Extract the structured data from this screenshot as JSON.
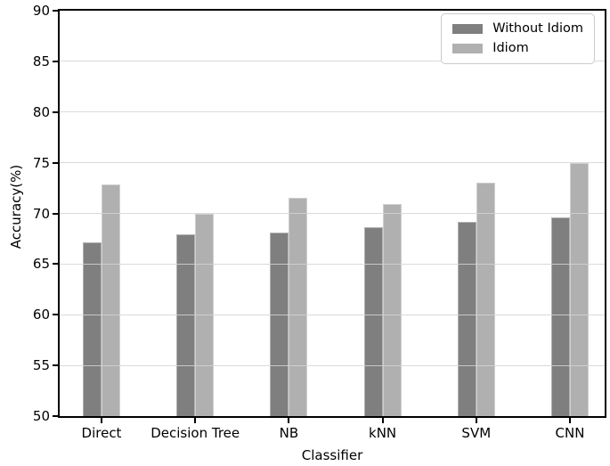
{
  "chart_data": {
    "type": "bar",
    "title": "",
    "xlabel": "Classifier",
    "ylabel": "Accuracy(%)",
    "categories": [
      "Direct",
      "Decision Tree",
      "NB",
      "kNN",
      "SVM",
      "CNN"
    ],
    "series": [
      {
        "name": "Without Idiom",
        "color": "#7f7f7f",
        "values": [
          67.1,
          67.9,
          68.1,
          68.6,
          69.2,
          69.6
        ]
      },
      {
        "name": "Idiom",
        "color": "#b0b0b0",
        "values": [
          72.9,
          70.0,
          71.5,
          70.9,
          73.0,
          75.0
        ]
      }
    ],
    "ylim": [
      50,
      90
    ],
    "yticks": [
      50,
      55,
      60,
      65,
      70,
      75,
      80,
      85,
      90
    ],
    "grid": "horizontal",
    "gridline_color": "#d3d3d3",
    "spine_color": "#000000",
    "background_color": "#ffffff",
    "legend": {
      "position": "top-right"
    }
  }
}
